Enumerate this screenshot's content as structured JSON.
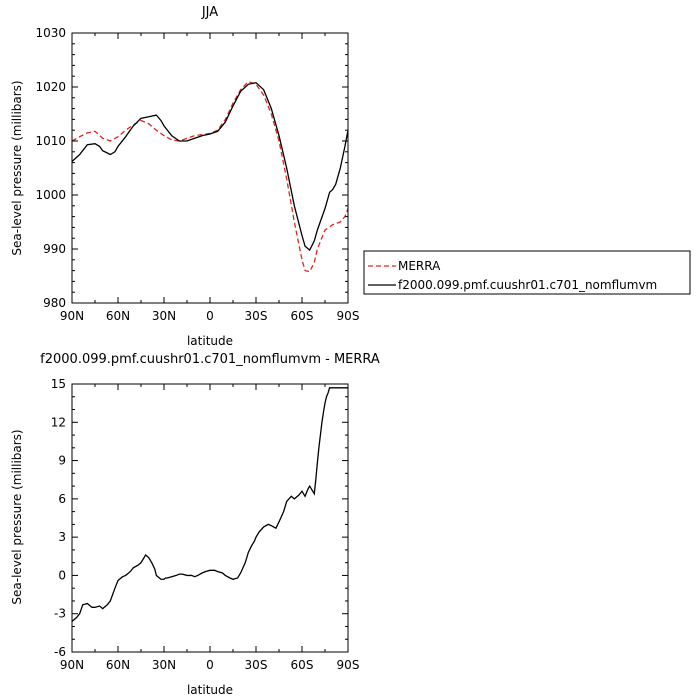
{
  "chart_data": [
    {
      "type": "line",
      "title": "JJA",
      "xlabel": "latitude",
      "ylabel": "Sea-level pressure (millibars)",
      "xlim": [
        -90,
        90
      ],
      "ylim": [
        980,
        1030
      ],
      "x_tick_values": [
        -90,
        -60,
        -30,
        0,
        30,
        60,
        90
      ],
      "x_tick_labels": [
        "90N",
        "60N",
        "30N",
        "0",
        "30S",
        "60S",
        "90S"
      ],
      "y_ticks": [
        980,
        990,
        1000,
        1010,
        1020,
        1030
      ],
      "legend_position": "right",
      "series": [
        {
          "name": "MERRA",
          "color": "#e0241f",
          "dash": "dashed",
          "x": [
            -90,
            -85,
            -80,
            -75,
            -70,
            -65,
            -60,
            -55,
            -50,
            -45,
            -40,
            -35,
            -30,
            -25,
            -20,
            -15,
            -10,
            -5,
            0,
            5,
            10,
            15,
            20,
            25,
            30,
            35,
            40,
            45,
            50,
            55,
            60,
            62,
            65,
            68,
            70,
            75,
            80,
            85,
            88,
            90
          ],
          "y": [
            1010.0,
            1010.8,
            1011.5,
            1011.8,
            1010.5,
            1010.0,
            1010.8,
            1012.0,
            1013.0,
            1013.8,
            1013.2,
            1012.0,
            1011.0,
            1010.2,
            1010.0,
            1010.5,
            1011.0,
            1011.2,
            1011.4,
            1012.0,
            1014.0,
            1017.0,
            1019.5,
            1021.0,
            1020.5,
            1018.5,
            1015.0,
            1010.0,
            1003.0,
            995.0,
            988.0,
            986.0,
            985.8,
            987.5,
            990.0,
            993.5,
            994.5,
            995.0,
            996.0,
            997.5
          ]
        },
        {
          "name": "f2000.099.pmf.cuushr01.c701_nomflumvm",
          "color": "#000000",
          "dash": "solid",
          "x": [
            -90,
            -85,
            -80,
            -75,
            -72,
            -70,
            -65,
            -62,
            -60,
            -55,
            -50,
            -45,
            -40,
            -35,
            -32,
            -30,
            -25,
            -20,
            -15,
            -10,
            -5,
            0,
            5,
            10,
            15,
            20,
            25,
            30,
            35,
            40,
            45,
            50,
            55,
            60,
            62,
            65,
            68,
            70,
            75,
            78,
            80,
            82,
            85,
            88,
            90
          ],
          "y": [
            1006.2,
            1007.5,
            1009.3,
            1009.5,
            1009.0,
            1008.2,
            1007.5,
            1008.0,
            1009.0,
            1010.8,
            1012.8,
            1014.2,
            1014.5,
            1014.8,
            1013.8,
            1012.8,
            1011.0,
            1010.0,
            1010.0,
            1010.5,
            1011.0,
            1011.3,
            1011.8,
            1013.5,
            1016.5,
            1019.2,
            1020.5,
            1020.8,
            1019.5,
            1016.0,
            1011.0,
            1005.0,
            998.0,
            992.5,
            990.5,
            989.8,
            991.5,
            993.5,
            997.5,
            1000.5,
            1001.0,
            1002.0,
            1005.0,
            1009.0,
            1012.0
          ]
        }
      ]
    },
    {
      "type": "line",
      "title": "f2000.099.pmf.cuushr01.c701_nomflumvm - MERRA",
      "xlabel": "latitude",
      "ylabel": "Sea-level pressure (millibars)",
      "xlim": [
        -90,
        90
      ],
      "ylim": [
        -6,
        15
      ],
      "x_tick_values": [
        -90,
        -60,
        -30,
        0,
        30,
        60,
        90
      ],
      "x_tick_labels": [
        "90N",
        "60N",
        "30N",
        "0",
        "30S",
        "60S",
        "90S"
      ],
      "y_ticks": [
        -6,
        -3,
        0,
        3,
        6,
        9,
        12,
        15
      ],
      "series": [
        {
          "color": "#000000",
          "dash": "solid",
          "x": [
            -90,
            -87,
            -85,
            -83,
            -80,
            -77,
            -75,
            -72,
            -70,
            -67,
            -65,
            -62,
            -60,
            -57,
            -55,
            -52,
            -50,
            -47,
            -45,
            -42,
            -40,
            -38,
            -36,
            -35,
            -33,
            -32,
            -30,
            -29,
            -28,
            -25,
            -22,
            -20,
            -18,
            -15,
            -12,
            -10,
            -8,
            -5,
            -3,
            0,
            3,
            5,
            8,
            10,
            13,
            15,
            18,
            20,
            23,
            25,
            27,
            29,
            30,
            32,
            35,
            38,
            40,
            43,
            45,
            48,
            50,
            53,
            55,
            58,
            60,
            62,
            64,
            65,
            67,
            68,
            69,
            70,
            71,
            72,
            73,
            74,
            75,
            76,
            77,
            78,
            79,
            80,
            81,
            82,
            83,
            84,
            85,
            86,
            87,
            88,
            89,
            90
          ],
          "y": [
            -3.6,
            -3.3,
            -3.0,
            -2.3,
            -2.2,
            -2.5,
            -2.5,
            -2.4,
            -2.6,
            -2.3,
            -2.0,
            -1.0,
            -0.4,
            -0.1,
            0.0,
            0.3,
            0.6,
            0.8,
            1.0,
            1.6,
            1.4,
            1.0,
            0.5,
            0.0,
            -0.2,
            -0.3,
            -0.3,
            -0.2,
            -0.2,
            -0.1,
            0.0,
            0.1,
            0.1,
            0.0,
            0.0,
            -0.1,
            0.0,
            0.2,
            0.3,
            0.4,
            0.4,
            0.3,
            0.2,
            0.0,
            -0.2,
            -0.3,
            -0.2,
            0.2,
            1.0,
            1.8,
            2.3,
            2.7,
            3.0,
            3.4,
            3.8,
            4.0,
            3.9,
            3.7,
            4.2,
            5.0,
            5.8,
            6.2,
            6.0,
            6.3,
            6.6,
            6.2,
            6.8,
            7.0,
            6.6,
            6.4,
            7.5,
            8.8,
            10.0,
            11.0,
            12.0,
            12.8,
            13.5,
            14.0,
            14.3,
            14.7,
            14.7,
            14.7,
            14.7,
            14.7,
            14.7,
            14.7,
            14.7,
            14.7,
            14.7,
            14.7,
            14.7,
            14.7
          ]
        }
      ]
    }
  ]
}
